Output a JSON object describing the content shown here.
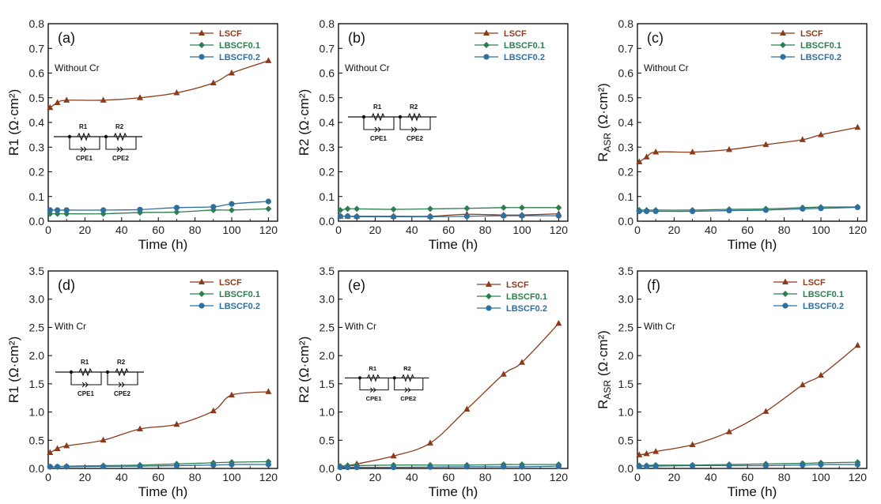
{
  "colors": {
    "LSCF": "#8B3A1A",
    "LBSCF0.1": "#2E7D4F",
    "LBSCF0.2": "#2E6F9E",
    "axis": "#000000"
  },
  "legend": [
    "LSCF",
    "LBSCF0.1",
    "LBSCF0.2"
  ],
  "circuit": {
    "r1": "R1",
    "r2": "R2",
    "cpe1": "CPE1",
    "cpe2": "CPE2"
  },
  "chart_data": [
    {
      "id": "a",
      "type": "line",
      "panel_label": "(a)",
      "condition": "Without Cr",
      "xlabel": "Time (h)",
      "ylabel": "R1 (Ω·cm²)",
      "xlim": [
        0,
        125
      ],
      "xticks": [
        0,
        20,
        40,
        60,
        80,
        100,
        120
      ],
      "ylim": [
        0,
        0.8
      ],
      "yticks": [
        "0.0",
        "0.1",
        "0.2",
        "0.3",
        "0.4",
        "0.5",
        "0.6",
        "0.7",
        "0.8"
      ],
      "x": [
        1,
        5,
        10,
        30,
        50,
        70,
        90,
        100,
        120
      ],
      "series": [
        {
          "name": "LSCF",
          "values": [
            0.46,
            0.48,
            0.49,
            0.49,
            0.5,
            0.52,
            0.56,
            0.6,
            0.65
          ]
        },
        {
          "name": "LBSCF0.1",
          "values": [
            0.03,
            0.03,
            0.03,
            0.03,
            0.035,
            0.037,
            0.045,
            0.045,
            0.05
          ]
        },
        {
          "name": "LBSCF0.2",
          "values": [
            0.045,
            0.045,
            0.045,
            0.045,
            0.047,
            0.055,
            0.058,
            0.07,
            0.08
          ]
        }
      ]
    },
    {
      "id": "b",
      "type": "line",
      "panel_label": "(b)",
      "condition": "Without Cr",
      "xlabel": "Time (h)",
      "ylabel": "R2 (Ω·cm²)",
      "xlim": [
        0,
        125
      ],
      "xticks": [
        0,
        20,
        40,
        60,
        80,
        100,
        120
      ],
      "ylim": [
        0,
        0.8
      ],
      "yticks": [
        "0.0",
        "0.1",
        "0.2",
        "0.3",
        "0.4",
        "0.5",
        "0.6",
        "0.7",
        "0.8"
      ],
      "x": [
        1,
        5,
        10,
        30,
        50,
        70,
        90,
        100,
        120
      ],
      "series": [
        {
          "name": "LSCF",
          "values": [
            0.02,
            0.02,
            0.02,
            0.02,
            0.02,
            0.028,
            0.025,
            0.025,
            0.03
          ]
        },
        {
          "name": "LBSCF0.1",
          "values": [
            0.045,
            0.05,
            0.05,
            0.048,
            0.05,
            0.052,
            0.055,
            0.055,
            0.055
          ]
        },
        {
          "name": "LBSCF0.2",
          "values": [
            0.02,
            0.02,
            0.018,
            0.018,
            0.018,
            0.02,
            0.022,
            0.022,
            0.022
          ]
        }
      ]
    },
    {
      "id": "c",
      "type": "line",
      "panel_label": "(c)",
      "condition": "Without Cr",
      "xlabel": "Time (h)",
      "ylabel": "RASR (Ω·cm²)",
      "xlim": [
        0,
        125
      ],
      "xticks": [
        0,
        20,
        40,
        60,
        80,
        100,
        120
      ],
      "ylim": [
        0,
        0.8
      ],
      "yticks": [
        "0.0",
        "0.1",
        "0.2",
        "0.3",
        "0.4",
        "0.5",
        "0.6",
        "0.7",
        "0.8"
      ],
      "x": [
        1,
        5,
        10,
        30,
        50,
        70,
        90,
        100,
        120
      ],
      "series": [
        {
          "name": "LSCF",
          "values": [
            0.24,
            0.26,
            0.28,
            0.28,
            0.29,
            0.31,
            0.33,
            0.35,
            0.38
          ]
        },
        {
          "name": "LBSCF0.1",
          "values": [
            0.045,
            0.045,
            0.045,
            0.045,
            0.048,
            0.05,
            0.055,
            0.057,
            0.058
          ]
        },
        {
          "name": "LBSCF0.2",
          "values": [
            0.04,
            0.04,
            0.04,
            0.04,
            0.043,
            0.045,
            0.05,
            0.052,
            0.056
          ]
        }
      ]
    },
    {
      "id": "d",
      "type": "line",
      "panel_label": "(d)",
      "condition": "With Cr",
      "xlabel": "Time (h)",
      "ylabel": "R1 (Ω·cm²)",
      "xlim": [
        0,
        125
      ],
      "xticks": [
        0,
        20,
        40,
        60,
        80,
        100,
        120
      ],
      "ylim": [
        0,
        3.5
      ],
      "yticks": [
        "0.0",
        "0.5",
        "1.0",
        "1.5",
        "2.0",
        "2.5",
        "3.0",
        "3.5"
      ],
      "x": [
        1,
        5,
        10,
        30,
        50,
        70,
        90,
        100,
        120
      ],
      "series": [
        {
          "name": "LSCF",
          "values": [
            0.28,
            0.35,
            0.4,
            0.5,
            0.7,
            0.78,
            1.02,
            1.3,
            1.36
          ]
        },
        {
          "name": "LBSCF0.1",
          "values": [
            0.03,
            0.03,
            0.04,
            0.05,
            0.06,
            0.08,
            0.1,
            0.11,
            0.12
          ]
        },
        {
          "name": "LBSCF0.2",
          "values": [
            0.03,
            0.03,
            0.03,
            0.035,
            0.04,
            0.05,
            0.06,
            0.07,
            0.07
          ]
        }
      ]
    },
    {
      "id": "e",
      "type": "line",
      "panel_label": "(e)",
      "condition": "With Cr",
      "xlabel": "Time (h)",
      "ylabel": "R2 (Ω·cm²)",
      "xlim": [
        0,
        125
      ],
      "xticks": [
        0,
        20,
        40,
        60,
        80,
        100,
        120
      ],
      "ylim": [
        0,
        3.5
      ],
      "yticks": [
        "0.0",
        "0.5",
        "1.0",
        "1.5",
        "2.0",
        "2.5",
        "3.0",
        "3.5"
      ],
      "x": [
        1,
        5,
        10,
        30,
        50,
        70,
        90,
        100,
        120
      ],
      "series": [
        {
          "name": "LSCF",
          "values": [
            0.03,
            0.05,
            0.08,
            0.22,
            0.45,
            1.05,
            1.67,
            1.88,
            2.57
          ]
        },
        {
          "name": "LBSCF0.1",
          "values": [
            0.04,
            0.05,
            0.05,
            0.06,
            0.06,
            0.06,
            0.07,
            0.07,
            0.07
          ]
        },
        {
          "name": "LBSCF0.2",
          "values": [
            0.02,
            0.02,
            0.02,
            0.02,
            0.025,
            0.03,
            0.03,
            0.03,
            0.04
          ]
        }
      ]
    },
    {
      "id": "f",
      "type": "line",
      "panel_label": "(f)",
      "condition": "With Cr",
      "xlabel": "Time (h)",
      "ylabel": "RASR (Ω·cm²)",
      "xlim": [
        0,
        125
      ],
      "xticks": [
        0,
        20,
        40,
        60,
        80,
        100,
        120
      ],
      "ylim": [
        0,
        3.5
      ],
      "yticks": [
        "0.0",
        "0.5",
        "1.0",
        "1.5",
        "2.0",
        "2.5",
        "3.0",
        "3.5"
      ],
      "x": [
        1,
        5,
        10,
        30,
        50,
        70,
        90,
        100,
        120
      ],
      "series": [
        {
          "name": "LSCF",
          "values": [
            0.24,
            0.26,
            0.3,
            0.42,
            0.65,
            1.01,
            1.48,
            1.65,
            2.18
          ]
        },
        {
          "name": "LBSCF0.1",
          "values": [
            0.05,
            0.05,
            0.06,
            0.06,
            0.07,
            0.08,
            0.09,
            0.1,
            0.11
          ]
        },
        {
          "name": "LBSCF0.2",
          "values": [
            0.04,
            0.04,
            0.04,
            0.05,
            0.05,
            0.05,
            0.06,
            0.07,
            0.07
          ]
        }
      ]
    }
  ]
}
